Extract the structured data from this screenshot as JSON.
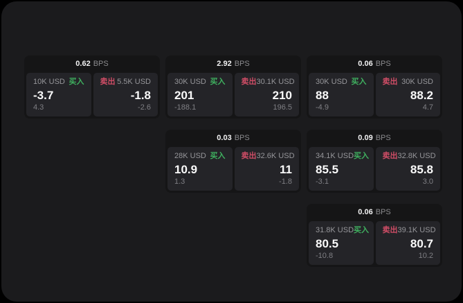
{
  "labels": {
    "bps_unit": "BPS",
    "buy": "买入",
    "sell": "卖出"
  },
  "colors": {
    "surface": "#1b1b1d",
    "card": "#151516",
    "panel": "#242428",
    "buy_green": "#3fb05f",
    "sell_red": "#cf4d66"
  },
  "cards": [
    {
      "bps": "0.62",
      "buy": {
        "amount": "10K USD",
        "price": "-3.7",
        "delta": "4.3"
      },
      "sell": {
        "amount": "5.5K USD",
        "price": "-1.8",
        "delta": "-2.6"
      }
    },
    {
      "bps": "2.92",
      "buy": {
        "amount": "30K USD",
        "price": "201",
        "delta": "-188.1"
      },
      "sell": {
        "amount": "30.1K USD",
        "price": "210",
        "delta": "196.5"
      }
    },
    {
      "bps": "0.06",
      "buy": {
        "amount": "30K USD",
        "price": "88",
        "delta": "-4.9"
      },
      "sell": {
        "amount": "30K USD",
        "price": "88.2",
        "delta": "4.7"
      }
    },
    {
      "bps": "0.03",
      "buy": {
        "amount": "28K USD",
        "price": "10.9",
        "delta": "1.3"
      },
      "sell": {
        "amount": "32.6K USD",
        "price": "11",
        "delta": "-1.8"
      }
    },
    {
      "bps": "0.09",
      "buy": {
        "amount": "34.1K USD",
        "price": "85.5",
        "delta": "-3.1"
      },
      "sell": {
        "amount": "32.8K USD",
        "price": "85.8",
        "delta": "3.0"
      }
    },
    {
      "bps": "0.06",
      "buy": {
        "amount": "31.8K USD",
        "price": "80.5",
        "delta": "-10.8"
      },
      "sell": {
        "amount": "39.1K USD",
        "price": "80.7",
        "delta": "10.2"
      }
    }
  ]
}
